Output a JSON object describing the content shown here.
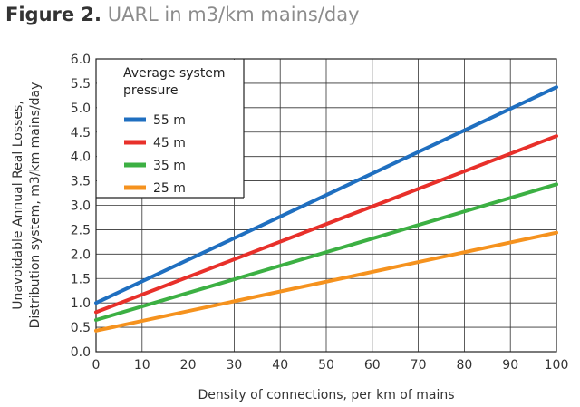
{
  "figure": {
    "label": "Figure 2.",
    "title": "UARL in m3/km mains/day"
  },
  "chart_data": {
    "type": "line",
    "title": "UARL in m3/km mains/day",
    "xlabel": "Density of connections, per km of mains",
    "ylabel_lines": [
      "Unavoidable Annual Real Losses,",
      "Distribution system, m3/km mains/day"
    ],
    "xlim": [
      0,
      100
    ],
    "ylim": [
      0,
      6
    ],
    "x_ticks": [
      0,
      10,
      20,
      30,
      40,
      50,
      60,
      70,
      80,
      90,
      100
    ],
    "y_ticks": [
      "0.0",
      "0.5",
      "1.0",
      "1.5",
      "2.0",
      "2.5",
      "3.0",
      "3.5",
      "4.0",
      "4.5",
      "5.0",
      "5.5",
      "6.0"
    ],
    "grid": true,
    "legend": {
      "title_lines": [
        "Average system",
        "pressure"
      ],
      "placement": "top-left"
    },
    "series": [
      {
        "name": "55 m",
        "color": "#1f6fc0",
        "x": [
          0,
          100
        ],
        "y": [
          1.0,
          5.42
        ]
      },
      {
        "name": "45 m",
        "color": "#e8302a",
        "x": [
          0,
          100
        ],
        "y": [
          0.81,
          4.42
        ]
      },
      {
        "name": "35 m",
        "color": "#3cb043",
        "x": [
          0,
          100
        ],
        "y": [
          0.65,
          3.43
        ]
      },
      {
        "name": "25 m",
        "color": "#f5921e",
        "x": [
          0,
          100
        ],
        "y": [
          0.43,
          2.44
        ]
      }
    ]
  }
}
